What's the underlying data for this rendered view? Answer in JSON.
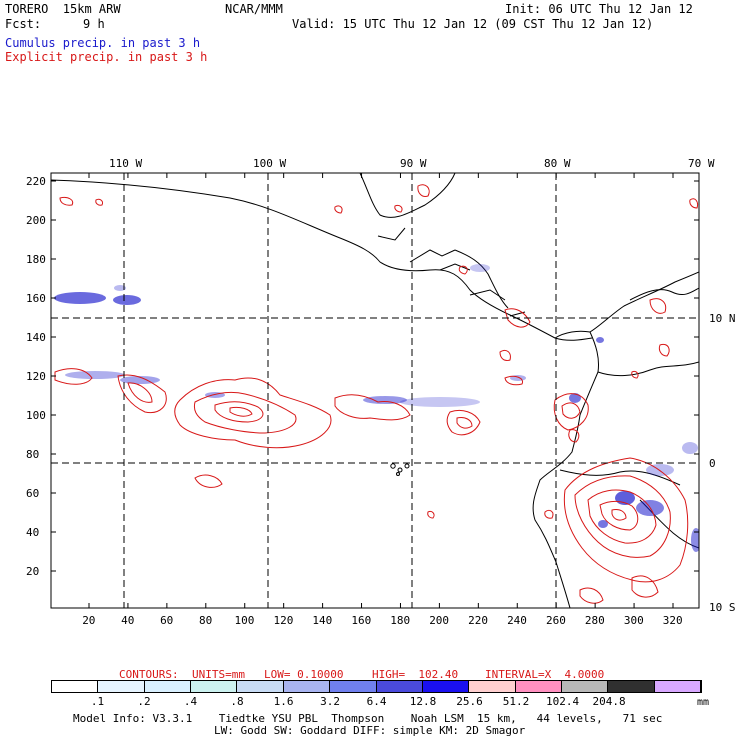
{
  "header": {
    "model_title": "TORERO  15km ARW",
    "org": "NCAR/MMM",
    "init": "Init: 06 UTC Thu 12 Jan 12",
    "fcst_label": "Fcst:",
    "fcst_value": "9 h",
    "valid": "Valid: 15 UTC Thu 12 Jan 12 (09 CST Thu 12 Jan 12)",
    "legend_cumulus": "Cumulus precip. in past 3 h",
    "legend_explicit": "Explicit precip. in past 3 h"
  },
  "colors": {
    "cumulus": "#1a1acc",
    "explicit": "#d81818",
    "coast": "#000000"
  },
  "map": {
    "lon_labels": [
      "110 W",
      "100 W",
      "90 W",
      "80 W",
      "70 W"
    ],
    "lat_labels": [
      "10 N",
      "0",
      "10 S"
    ],
    "y_ticks": [
      "220",
      "200",
      "180",
      "160",
      "140",
      "120",
      "100",
      "80",
      "60",
      "40",
      "20"
    ],
    "x_ticks": [
      "20",
      "40",
      "60",
      "80",
      "100",
      "120",
      "140",
      "160",
      "180",
      "200",
      "220",
      "240",
      "260",
      "280",
      "300",
      "320"
    ]
  },
  "contour_info": {
    "contours": "CONTOURS:",
    "units": "UNITS=mm",
    "low": "LOW= 0.10000",
    "high": "HIGH=  102.40",
    "interval": "INTERVAL=X  4.0000"
  },
  "colorbar": {
    "unit": "mm",
    "labels": [
      ".1",
      ".2",
      ".4",
      ".8",
      "1.6",
      "3.2",
      "6.4",
      "12.8",
      "25.6",
      "51.2",
      "102.4",
      "204.8"
    ],
    "colors": [
      "#ffffff",
      "#e6f4ff",
      "#d9f0ff",
      "#ccf2f0",
      "#c8dcf5",
      "#a8b4f0",
      "#7080ee",
      "#4a4adc",
      "#1a10f0",
      "#ffd0d0",
      "#ff90c0",
      "#b8b8b8",
      "#303030",
      "#d8a8ff"
    ]
  },
  "footer": {
    "line1": "Model Info: V3.3.1    Tiedtke YSU PBL  Thompson    Noah LSM  15 km,   44 levels,   71 sec",
    "line2": "LW: Godd SW: Goddard DIFF: simple KM: 2D Smagor"
  }
}
